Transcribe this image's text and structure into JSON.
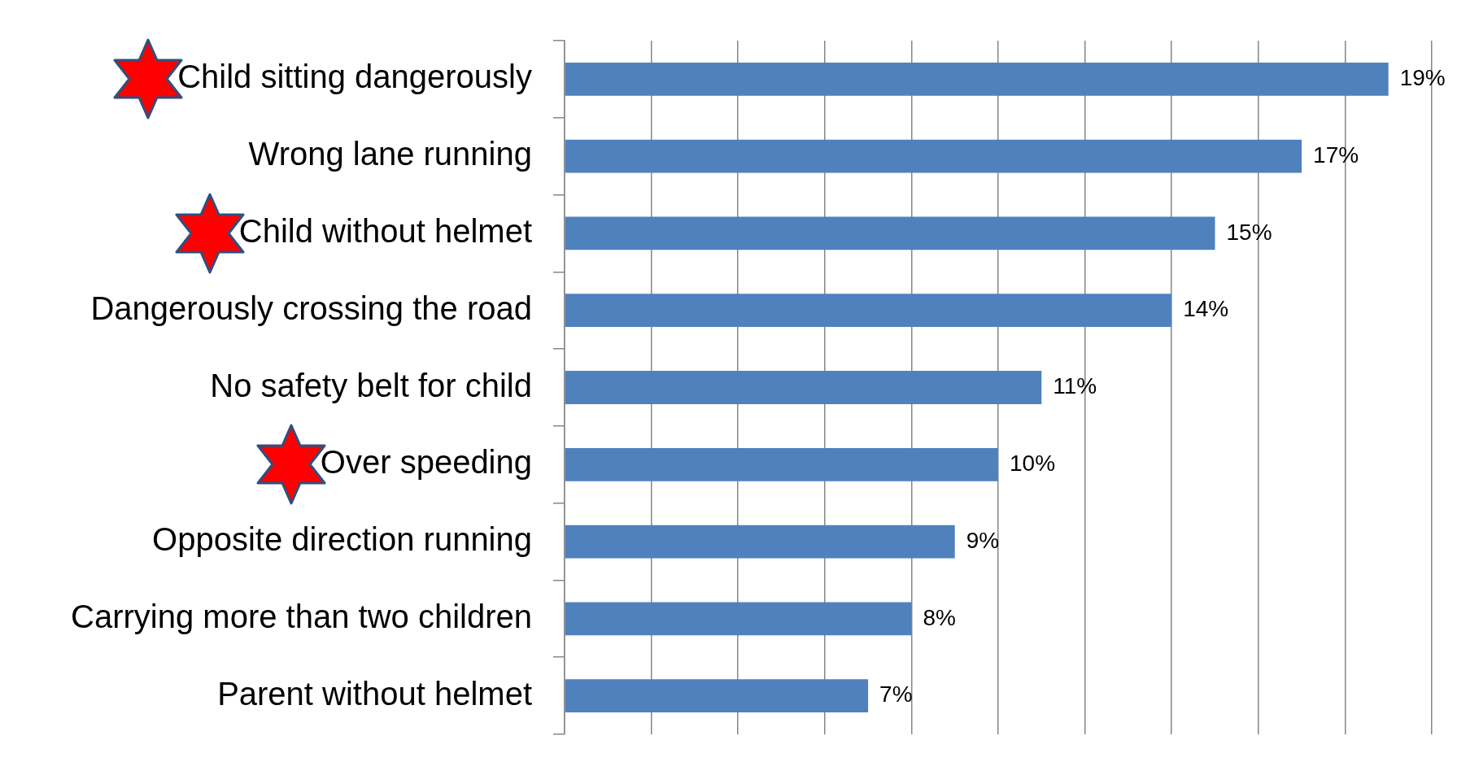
{
  "chart_data": {
    "type": "bar",
    "orientation": "horizontal",
    "categories": [
      "Child sitting dangerously",
      "Wrong lane running",
      "Child without helmet",
      "Dangerously crossing the road",
      "No safety belt for child",
      "Over speeding",
      "Opposite direction running",
      "Carrying more than two children",
      "Parent without helmet"
    ],
    "values": [
      19,
      17,
      15,
      14,
      11,
      10,
      9,
      8,
      7
    ],
    "value_labels": [
      "19%",
      "17%",
      "15%",
      "14%",
      "11%",
      "10%",
      "9%",
      "8%",
      "7%"
    ],
    "color": "#4f81bd",
    "xlim": [
      0,
      20
    ],
    "xticks": [
      {
        "value": 0,
        "label": null
      },
      {
        "value": 2,
        "label": null
      },
      {
        "value": 4,
        "label": null
      },
      {
        "value": 6,
        "label": null
      },
      {
        "value": 8,
        "label": null
      },
      {
        "value": 10,
        "label": null
      },
      {
        "value": 12,
        "label": null
      },
      {
        "value": 14,
        "label": null
      },
      {
        "value": 16,
        "label": null
      },
      {
        "value": 18,
        "label": null
      },
      {
        "value": 20,
        "label": null
      }
    ],
    "grid": "x",
    "tick_labels": "y",
    "legend": false
  }
}
